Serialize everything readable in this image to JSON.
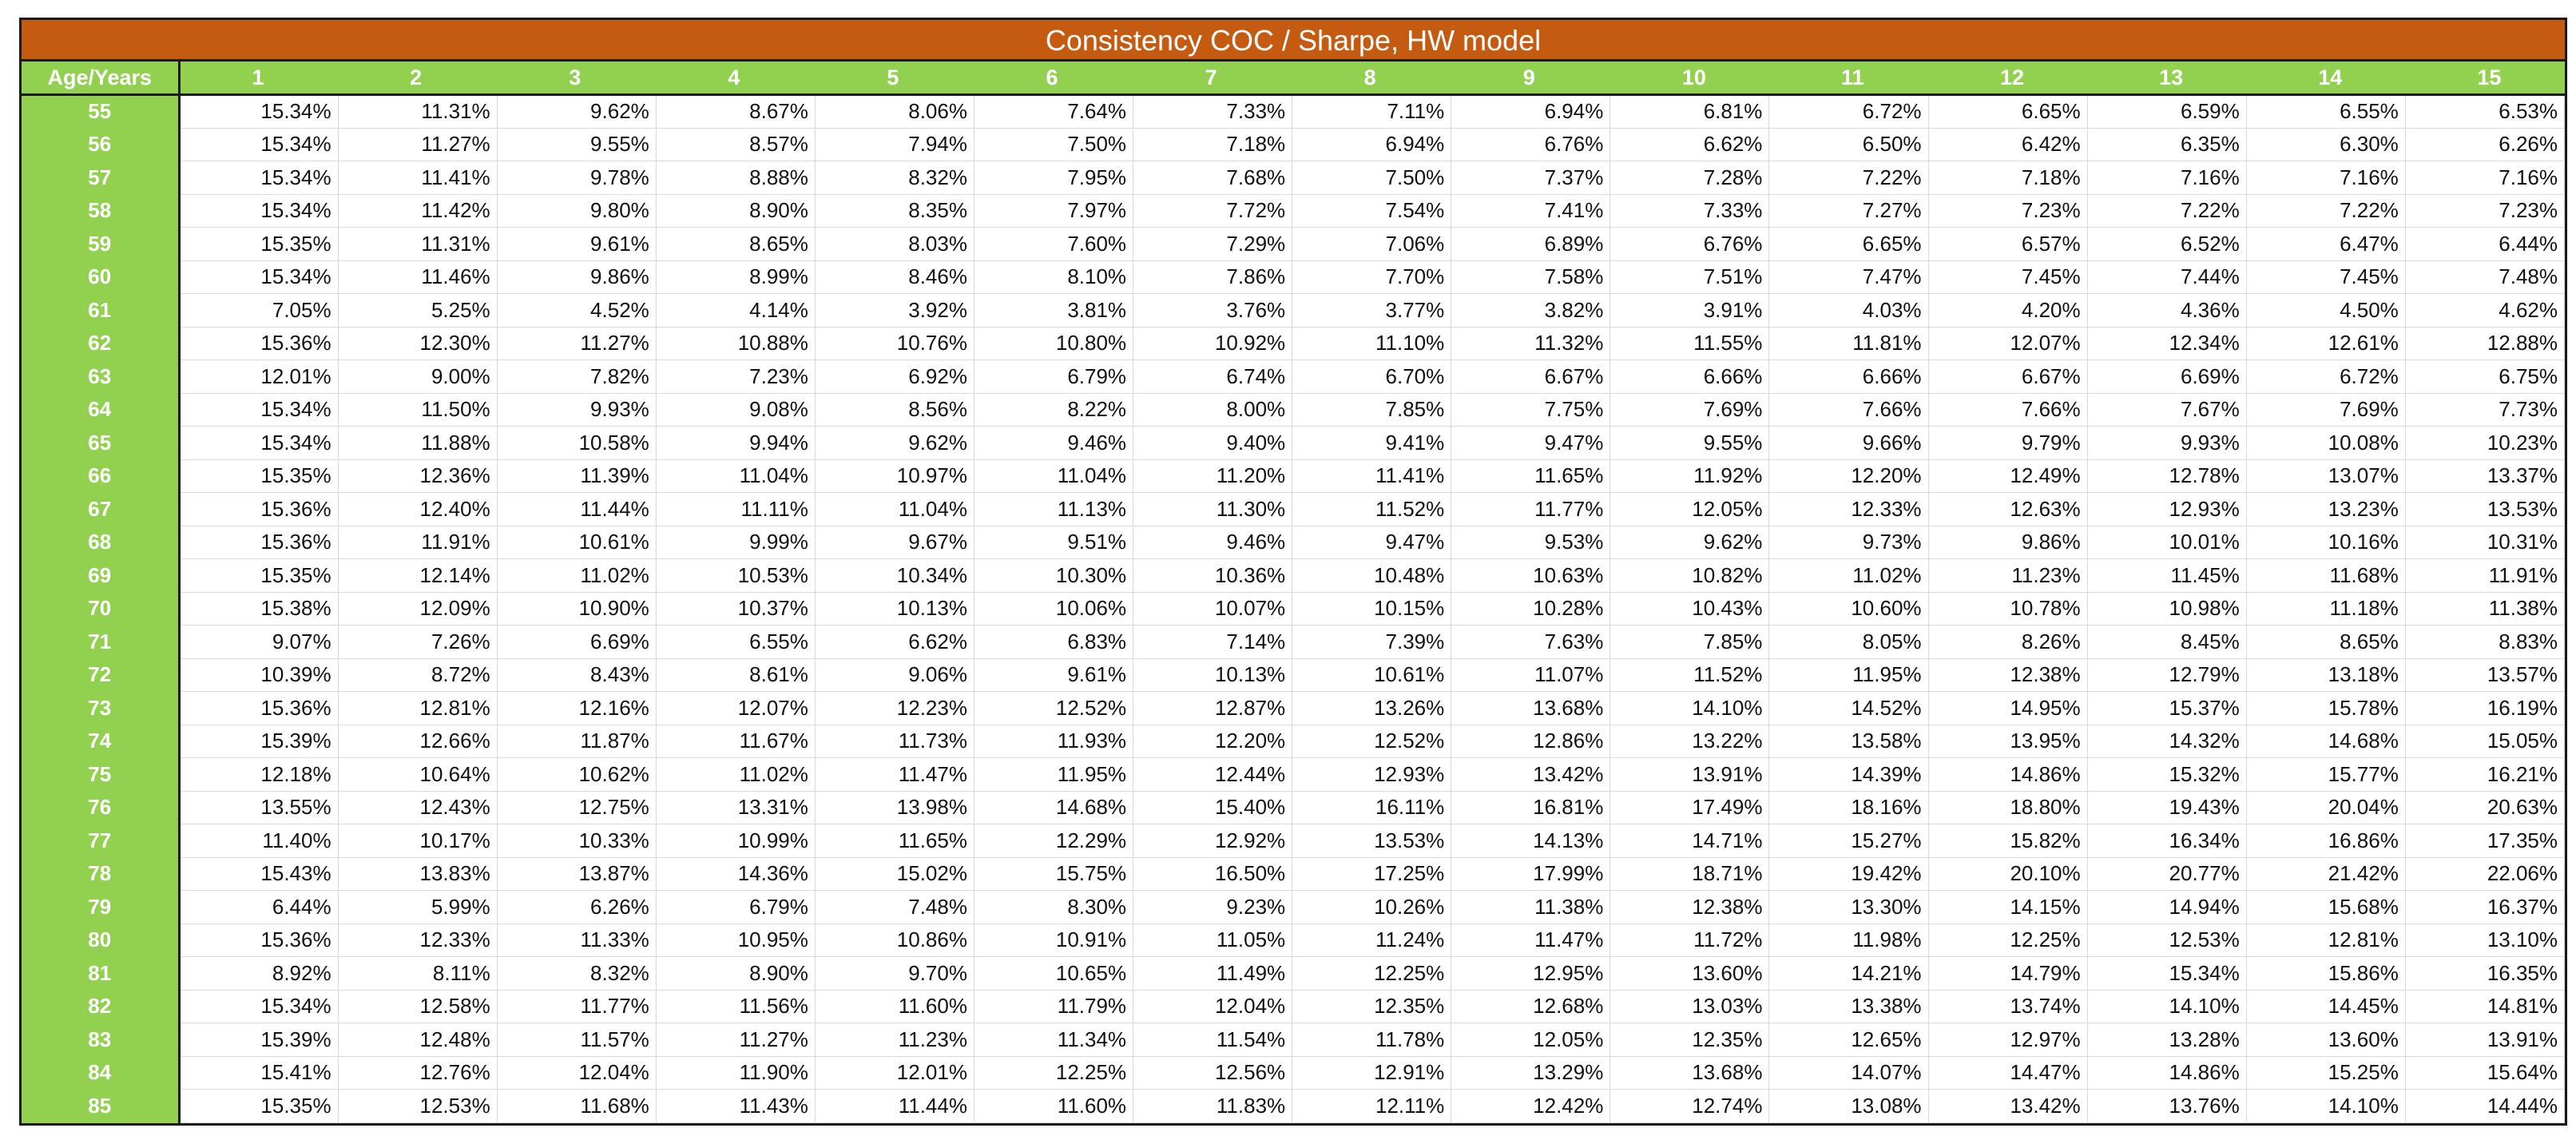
{
  "title": "Consistency COC / Sharpe, HW model",
  "corner_label": "Age/Years",
  "years": [
    "1",
    "2",
    "3",
    "4",
    "5",
    "6",
    "7",
    "8",
    "9",
    "10",
    "11",
    "12",
    "13",
    "14",
    "15"
  ],
  "rows": [
    {
      "age": "55",
      "values": [
        "15.34%",
        "11.31%",
        "9.62%",
        "8.67%",
        "8.06%",
        "7.64%",
        "7.33%",
        "7.11%",
        "6.94%",
        "6.81%",
        "6.72%",
        "6.65%",
        "6.59%",
        "6.55%",
        "6.53%"
      ]
    },
    {
      "age": "56",
      "values": [
        "15.34%",
        "11.27%",
        "9.55%",
        "8.57%",
        "7.94%",
        "7.50%",
        "7.18%",
        "6.94%",
        "6.76%",
        "6.62%",
        "6.50%",
        "6.42%",
        "6.35%",
        "6.30%",
        "6.26%"
      ]
    },
    {
      "age": "57",
      "values": [
        "15.34%",
        "11.41%",
        "9.78%",
        "8.88%",
        "8.32%",
        "7.95%",
        "7.68%",
        "7.50%",
        "7.37%",
        "7.28%",
        "7.22%",
        "7.18%",
        "7.16%",
        "7.16%",
        "7.16%"
      ]
    },
    {
      "age": "58",
      "values": [
        "15.34%",
        "11.42%",
        "9.80%",
        "8.90%",
        "8.35%",
        "7.97%",
        "7.72%",
        "7.54%",
        "7.41%",
        "7.33%",
        "7.27%",
        "7.23%",
        "7.22%",
        "7.22%",
        "7.23%"
      ]
    },
    {
      "age": "59",
      "values": [
        "15.35%",
        "11.31%",
        "9.61%",
        "8.65%",
        "8.03%",
        "7.60%",
        "7.29%",
        "7.06%",
        "6.89%",
        "6.76%",
        "6.65%",
        "6.57%",
        "6.52%",
        "6.47%",
        "6.44%"
      ]
    },
    {
      "age": "60",
      "values": [
        "15.34%",
        "11.46%",
        "9.86%",
        "8.99%",
        "8.46%",
        "8.10%",
        "7.86%",
        "7.70%",
        "7.58%",
        "7.51%",
        "7.47%",
        "7.45%",
        "7.44%",
        "7.45%",
        "7.48%"
      ]
    },
    {
      "age": "61",
      "values": [
        "7.05%",
        "5.25%",
        "4.52%",
        "4.14%",
        "3.92%",
        "3.81%",
        "3.76%",
        "3.77%",
        "3.82%",
        "3.91%",
        "4.03%",
        "4.20%",
        "4.36%",
        "4.50%",
        "4.62%"
      ]
    },
    {
      "age": "62",
      "values": [
        "15.36%",
        "12.30%",
        "11.27%",
        "10.88%",
        "10.76%",
        "10.80%",
        "10.92%",
        "11.10%",
        "11.32%",
        "11.55%",
        "11.81%",
        "12.07%",
        "12.34%",
        "12.61%",
        "12.88%"
      ]
    },
    {
      "age": "63",
      "values": [
        "12.01%",
        "9.00%",
        "7.82%",
        "7.23%",
        "6.92%",
        "6.79%",
        "6.74%",
        "6.70%",
        "6.67%",
        "6.66%",
        "6.66%",
        "6.67%",
        "6.69%",
        "6.72%",
        "6.75%"
      ]
    },
    {
      "age": "64",
      "values": [
        "15.34%",
        "11.50%",
        "9.93%",
        "9.08%",
        "8.56%",
        "8.22%",
        "8.00%",
        "7.85%",
        "7.75%",
        "7.69%",
        "7.66%",
        "7.66%",
        "7.67%",
        "7.69%",
        "7.73%"
      ]
    },
    {
      "age": "65",
      "values": [
        "15.34%",
        "11.88%",
        "10.58%",
        "9.94%",
        "9.62%",
        "9.46%",
        "9.40%",
        "9.41%",
        "9.47%",
        "9.55%",
        "9.66%",
        "9.79%",
        "9.93%",
        "10.08%",
        "10.23%"
      ]
    },
    {
      "age": "66",
      "values": [
        "15.35%",
        "12.36%",
        "11.39%",
        "11.04%",
        "10.97%",
        "11.04%",
        "11.20%",
        "11.41%",
        "11.65%",
        "11.92%",
        "12.20%",
        "12.49%",
        "12.78%",
        "13.07%",
        "13.37%"
      ]
    },
    {
      "age": "67",
      "values": [
        "15.36%",
        "12.40%",
        "11.44%",
        "11.11%",
        "11.04%",
        "11.13%",
        "11.30%",
        "11.52%",
        "11.77%",
        "12.05%",
        "12.33%",
        "12.63%",
        "12.93%",
        "13.23%",
        "13.53%"
      ]
    },
    {
      "age": "68",
      "values": [
        "15.36%",
        "11.91%",
        "10.61%",
        "9.99%",
        "9.67%",
        "9.51%",
        "9.46%",
        "9.47%",
        "9.53%",
        "9.62%",
        "9.73%",
        "9.86%",
        "10.01%",
        "10.16%",
        "10.31%"
      ]
    },
    {
      "age": "69",
      "values": [
        "15.35%",
        "12.14%",
        "11.02%",
        "10.53%",
        "10.34%",
        "10.30%",
        "10.36%",
        "10.48%",
        "10.63%",
        "10.82%",
        "11.02%",
        "11.23%",
        "11.45%",
        "11.68%",
        "11.91%"
      ]
    },
    {
      "age": "70",
      "values": [
        "15.38%",
        "12.09%",
        "10.90%",
        "10.37%",
        "10.13%",
        "10.06%",
        "10.07%",
        "10.15%",
        "10.28%",
        "10.43%",
        "10.60%",
        "10.78%",
        "10.98%",
        "11.18%",
        "11.38%"
      ]
    },
    {
      "age": "71",
      "values": [
        "9.07%",
        "7.26%",
        "6.69%",
        "6.55%",
        "6.62%",
        "6.83%",
        "7.14%",
        "7.39%",
        "7.63%",
        "7.85%",
        "8.05%",
        "8.26%",
        "8.45%",
        "8.65%",
        "8.83%"
      ]
    },
    {
      "age": "72",
      "values": [
        "10.39%",
        "8.72%",
        "8.43%",
        "8.61%",
        "9.06%",
        "9.61%",
        "10.13%",
        "10.61%",
        "11.07%",
        "11.52%",
        "11.95%",
        "12.38%",
        "12.79%",
        "13.18%",
        "13.57%"
      ]
    },
    {
      "age": "73",
      "values": [
        "15.36%",
        "12.81%",
        "12.16%",
        "12.07%",
        "12.23%",
        "12.52%",
        "12.87%",
        "13.26%",
        "13.68%",
        "14.10%",
        "14.52%",
        "14.95%",
        "15.37%",
        "15.78%",
        "16.19%"
      ]
    },
    {
      "age": "74",
      "values": [
        "15.39%",
        "12.66%",
        "11.87%",
        "11.67%",
        "11.73%",
        "11.93%",
        "12.20%",
        "12.52%",
        "12.86%",
        "13.22%",
        "13.58%",
        "13.95%",
        "14.32%",
        "14.68%",
        "15.05%"
      ]
    },
    {
      "age": "75",
      "values": [
        "12.18%",
        "10.64%",
        "10.62%",
        "11.02%",
        "11.47%",
        "11.95%",
        "12.44%",
        "12.93%",
        "13.42%",
        "13.91%",
        "14.39%",
        "14.86%",
        "15.32%",
        "15.77%",
        "16.21%"
      ]
    },
    {
      "age": "76",
      "values": [
        "13.55%",
        "12.43%",
        "12.75%",
        "13.31%",
        "13.98%",
        "14.68%",
        "15.40%",
        "16.11%",
        "16.81%",
        "17.49%",
        "18.16%",
        "18.80%",
        "19.43%",
        "20.04%",
        "20.63%"
      ]
    },
    {
      "age": "77",
      "values": [
        "11.40%",
        "10.17%",
        "10.33%",
        "10.99%",
        "11.65%",
        "12.29%",
        "12.92%",
        "13.53%",
        "14.13%",
        "14.71%",
        "15.27%",
        "15.82%",
        "16.34%",
        "16.86%",
        "17.35%"
      ]
    },
    {
      "age": "78",
      "values": [
        "15.43%",
        "13.83%",
        "13.87%",
        "14.36%",
        "15.02%",
        "15.75%",
        "16.50%",
        "17.25%",
        "17.99%",
        "18.71%",
        "19.42%",
        "20.10%",
        "20.77%",
        "21.42%",
        "22.06%"
      ]
    },
    {
      "age": "79",
      "values": [
        "6.44%",
        "5.99%",
        "6.26%",
        "6.79%",
        "7.48%",
        "8.30%",
        "9.23%",
        "10.26%",
        "11.38%",
        "12.38%",
        "13.30%",
        "14.15%",
        "14.94%",
        "15.68%",
        "16.37%"
      ]
    },
    {
      "age": "80",
      "values": [
        "15.36%",
        "12.33%",
        "11.33%",
        "10.95%",
        "10.86%",
        "10.91%",
        "11.05%",
        "11.24%",
        "11.47%",
        "11.72%",
        "11.98%",
        "12.25%",
        "12.53%",
        "12.81%",
        "13.10%"
      ]
    },
    {
      "age": "81",
      "values": [
        "8.92%",
        "8.11%",
        "8.32%",
        "8.90%",
        "9.70%",
        "10.65%",
        "11.49%",
        "12.25%",
        "12.95%",
        "13.60%",
        "14.21%",
        "14.79%",
        "15.34%",
        "15.86%",
        "16.35%"
      ]
    },
    {
      "age": "82",
      "values": [
        "15.34%",
        "12.58%",
        "11.77%",
        "11.56%",
        "11.60%",
        "11.79%",
        "12.04%",
        "12.35%",
        "12.68%",
        "13.03%",
        "13.38%",
        "13.74%",
        "14.10%",
        "14.45%",
        "14.81%"
      ]
    },
    {
      "age": "83",
      "values": [
        "15.39%",
        "12.48%",
        "11.57%",
        "11.27%",
        "11.23%",
        "11.34%",
        "11.54%",
        "11.78%",
        "12.05%",
        "12.35%",
        "12.65%",
        "12.97%",
        "13.28%",
        "13.60%",
        "13.91%"
      ]
    },
    {
      "age": "84",
      "values": [
        "15.41%",
        "12.76%",
        "12.04%",
        "11.90%",
        "12.01%",
        "12.25%",
        "12.56%",
        "12.91%",
        "13.29%",
        "13.68%",
        "14.07%",
        "14.47%",
        "14.86%",
        "15.25%",
        "15.64%"
      ]
    },
    {
      "age": "85",
      "values": [
        "15.35%",
        "12.53%",
        "11.68%",
        "11.43%",
        "11.44%",
        "11.60%",
        "11.83%",
        "12.11%",
        "12.42%",
        "12.74%",
        "13.08%",
        "13.42%",
        "13.76%",
        "14.10%",
        "14.44%"
      ]
    }
  ],
  "colors": {
    "title_bg": "#c55a11",
    "header_bg": "#92d050",
    "header_text": "#ffffff",
    "border": "#1a1a1a",
    "grid": "#d9d9d9"
  }
}
